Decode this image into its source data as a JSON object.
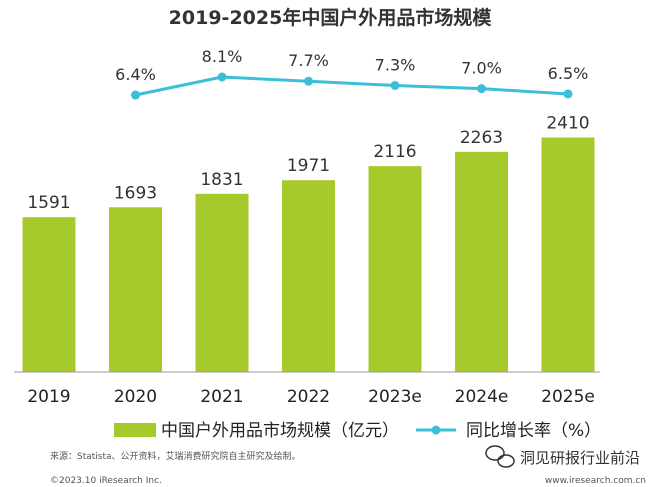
{
  "chart_data": {
    "type": "bar",
    "title": "2019-2025年中国户外用品市场规模",
    "categories": [
      "2019",
      "2020",
      "2021",
      "2022",
      "2023e",
      "2024e",
      "2025e"
    ],
    "series": [
      {
        "name": "中国户外用品市场规模（亿元）",
        "kind": "bar",
        "color": "#a6c92b",
        "values": [
          1591,
          1693,
          1831,
          1971,
          2116,
          2263,
          2410
        ],
        "labels": [
          "1591",
          "1693",
          "1831",
          "1971",
          "2116",
          "2263",
          "2410"
        ]
      },
      {
        "name": "同比增长率（%）",
        "kind": "line",
        "color": "#3bbfd9",
        "values": [
          6.4,
          8.1,
          7.7,
          7.3,
          7.0,
          6.5
        ],
        "labels": [
          "6.4%",
          "8.1%",
          "7.7%",
          "7.3%",
          "7.0%",
          "6.5%"
        ],
        "x": [
          "2020",
          "2021",
          "2022",
          "2023e",
          "2024e",
          "2025e"
        ]
      }
    ],
    "ylim": [
      0,
      2500
    ],
    "xlabel": "",
    "ylabel": "",
    "grid": false,
    "legend_position": "bottom"
  },
  "footer": {
    "source": "来源：Statista、公开资料，艾瑞消费研究院自主研究及绘制。",
    "copyright": "©2023.10 iResearch Inc.",
    "website": "www.iresearch.com.cn"
  },
  "watermark": {
    "wechat_account": "洞见研报行业前沿"
  }
}
